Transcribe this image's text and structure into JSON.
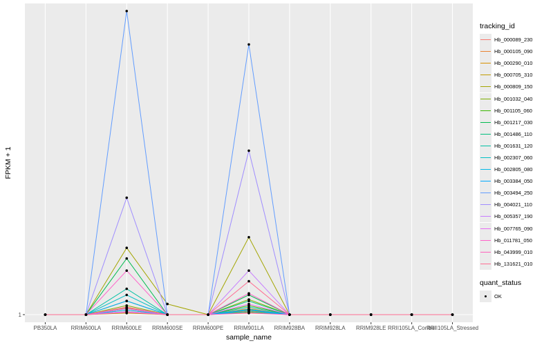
{
  "chart_data": {
    "type": "line",
    "title": "",
    "xlabel": "sample_name",
    "ylabel": "FPKM + 1",
    "y_ticks": [
      {
        "value": 1,
        "label": "1"
      }
    ],
    "ylim": [
      0.5,
      21.5
    ],
    "categories": [
      "PB350LA",
      "RRIM600LA",
      "RRIM600LE",
      "RRIM600SE",
      "RRIM600PE",
      "RRIM901LA",
      "RRIM928BA",
      "RRIM928LA",
      "RRIM928LE",
      "RRII105LA_Control",
      "RRII105LA_Stressed"
    ],
    "x_tick_labels": [
      "PB350LA",
      "RRIM600LA",
      "RRIM600LE",
      "RRIM600SE",
      "RRIM600PE",
      "RRIM901LA",
      "RRIM928BA",
      "RRIM928LA",
      "RRIM928LE",
      "RRII105LA_Control",
      "RRII105LA_Stressed"
    ],
    "series": [
      {
        "name": "Hb_000089_230",
        "color": "#F8766D",
        "values": [
          1,
          1,
          1.3,
          1,
          1,
          1.3,
          1,
          1,
          1,
          1,
          1
        ]
      },
      {
        "name": "Hb_000105_090",
        "color": "#EA8331",
        "values": [
          1,
          1,
          1.45,
          1,
          1,
          1.4,
          1,
          1,
          1,
          1,
          1
        ]
      },
      {
        "name": "Hb_000290_010",
        "color": "#D89000",
        "values": [
          1,
          1,
          1.2,
          1,
          1,
          1.25,
          1,
          1,
          1,
          1,
          1
        ]
      },
      {
        "name": "Hb_000705_310",
        "color": "#C09B00",
        "values": [
          1,
          1,
          1.1,
          1,
          1,
          1.15,
          1,
          1,
          1,
          1,
          1
        ]
      },
      {
        "name": "Hb_000809_150",
        "color": "#A3A500",
        "values": [
          1,
          1,
          5.4,
          1.7,
          1,
          6.1,
          1,
          1,
          1,
          1,
          1
        ]
      },
      {
        "name": "Hb_001032_040",
        "color": "#7CAE00",
        "values": [
          1,
          1,
          1.6,
          1,
          1,
          2.0,
          1,
          1,
          1,
          1,
          1
        ]
      },
      {
        "name": "Hb_001105_060",
        "color": "#39B600",
        "values": [
          1,
          1,
          1.9,
          1,
          1,
          1.6,
          1,
          1,
          1,
          1,
          1
        ]
      },
      {
        "name": "Hb_001217_030",
        "color": "#00BB4E",
        "values": [
          1,
          1,
          4.7,
          1,
          1,
          2.3,
          1,
          1,
          1,
          1,
          1
        ]
      },
      {
        "name": "Hb_001486_110",
        "color": "#00BF7D",
        "values": [
          1,
          1,
          1.4,
          1,
          1,
          1.9,
          1,
          1,
          1,
          1,
          1
        ]
      },
      {
        "name": "Hb_001631_120",
        "color": "#00C1A3",
        "values": [
          1,
          1,
          2.7,
          1,
          1,
          1.5,
          1,
          1,
          1,
          1,
          1
        ]
      },
      {
        "name": "Hb_002307_060",
        "color": "#00BFC4",
        "values": [
          1,
          1,
          2.3,
          1,
          1,
          1.35,
          1,
          1,
          1,
          1,
          1
        ]
      },
      {
        "name": "Hb_002805_080",
        "color": "#00B8E7",
        "values": [
          1,
          1,
          1.3,
          1,
          1,
          1.2,
          1,
          1,
          1,
          1,
          1
        ]
      },
      {
        "name": "Hb_003384_050",
        "color": "#00A9FF",
        "values": [
          1,
          1,
          1.9,
          1,
          1,
          1.3,
          1,
          1,
          1,
          1,
          1
        ]
      },
      {
        "name": "Hb_003494_250",
        "color": "#619CFF",
        "values": [
          1,
          1,
          21,
          1,
          1,
          18.8,
          1,
          1,
          1,
          1,
          1
        ]
      },
      {
        "name": "Hb_004021_110",
        "color": "#9F8CFF",
        "values": [
          1,
          1,
          8.7,
          1,
          1,
          11.8,
          1,
          1,
          1,
          1,
          1
        ]
      },
      {
        "name": "Hb_005357_190",
        "color": "#C77CFF",
        "values": [
          1,
          1,
          1.2,
          1,
          1,
          3.9,
          1,
          1,
          1,
          1,
          1
        ]
      },
      {
        "name": "Hb_007765_090",
        "color": "#E76BF3",
        "values": [
          1,
          1,
          1.4,
          1,
          1,
          1.7,
          1,
          1,
          1,
          1,
          1
        ]
      },
      {
        "name": "Hb_011781_050",
        "color": "#FF61C9",
        "values": [
          1,
          1,
          3.9,
          1,
          1,
          2.4,
          1,
          1,
          1,
          1,
          1
        ]
      },
      {
        "name": "Hb_043999_010",
        "color": "#FF62BC",
        "values": [
          1,
          1,
          1.15,
          1,
          1,
          1.1,
          1,
          1,
          1,
          1,
          1
        ]
      },
      {
        "name": "Hb_131621_010",
        "color": "#FF6C91",
        "values": [
          1,
          1,
          1.5,
          1,
          1,
          3.2,
          1,
          1,
          1,
          1,
          1
        ]
      }
    ],
    "legend": {
      "title": "tracking_id",
      "placement": "right"
    },
    "legend2": {
      "title": "quant_status",
      "entries": [
        "OK"
      ]
    },
    "grid": true
  }
}
